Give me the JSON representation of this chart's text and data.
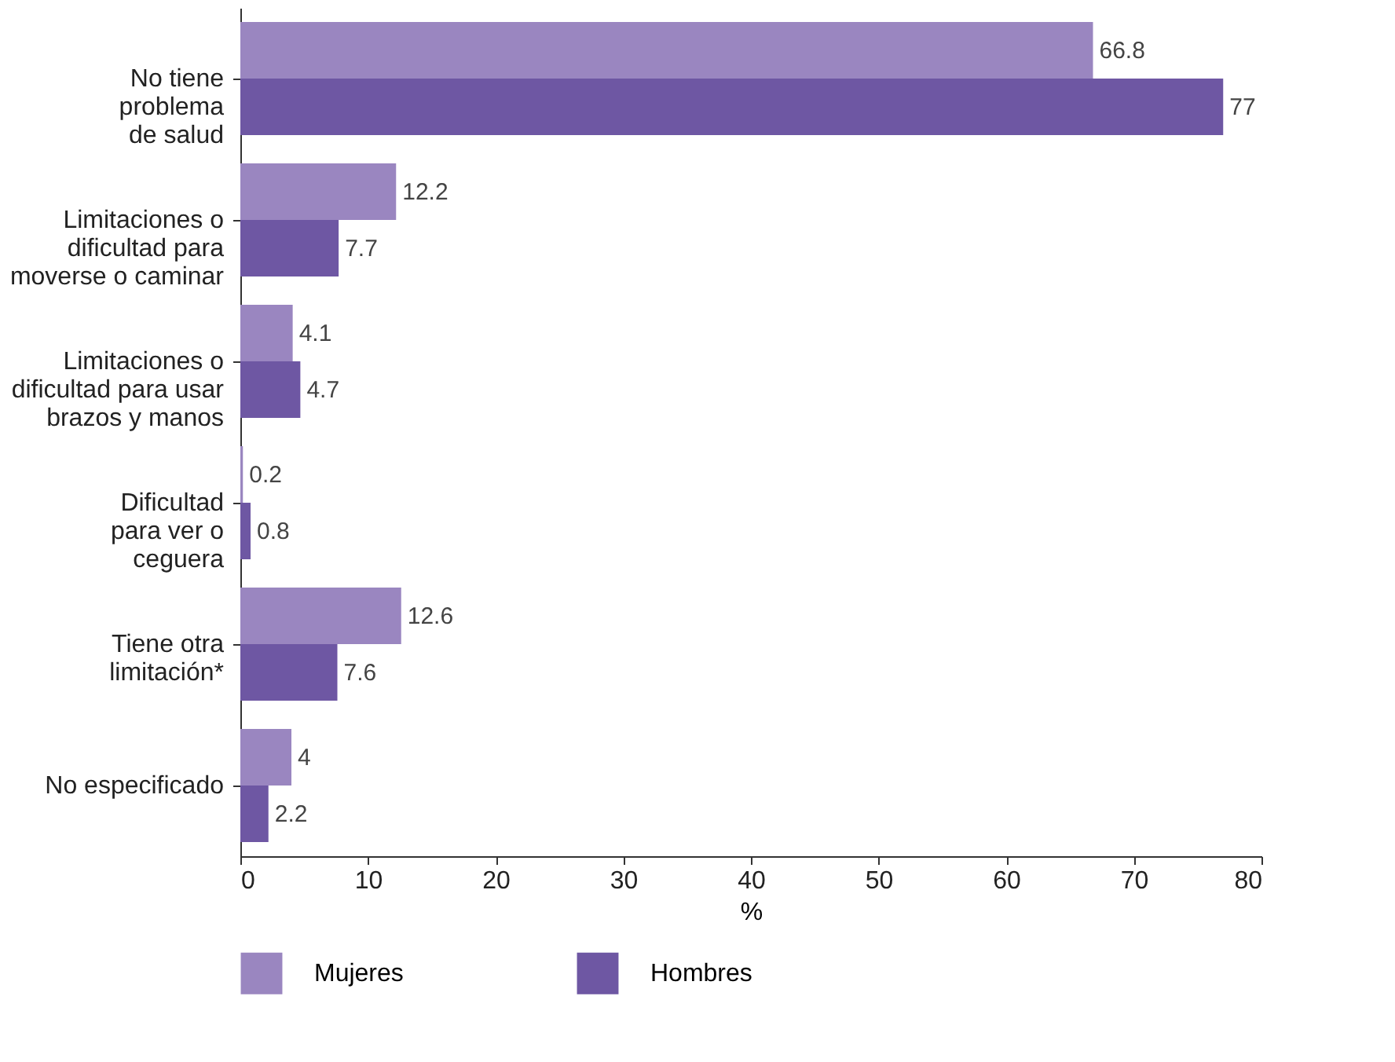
{
  "chart_data": {
    "type": "bar",
    "orientation": "horizontal",
    "categories": [
      "No tiene\nproblema\nde salud",
      "Limitaciones o\ndificultad para\nmoverse o caminar",
      "Limitaciones o\ndificultad para usar\nbrazos y manos",
      "Dificultad\npara ver o\nceguera",
      "Tiene otra\nlimitación*",
      "No especificado"
    ],
    "series": [
      {
        "name": "Mujeres",
        "color": "#9a86c0",
        "values": [
          66.8,
          12.2,
          4.1,
          0.2,
          12.6,
          4
        ]
      },
      {
        "name": "Hombres",
        "color": "#6e57a3",
        "values": [
          77,
          7.7,
          4.7,
          0.8,
          7.6,
          2.2
        ]
      }
    ],
    "xlabel": "%",
    "xlim": [
      0,
      80
    ],
    "xticks": [
      0,
      10,
      20,
      30,
      40,
      50,
      60,
      70,
      80
    ],
    "data_labels": true,
    "grid": false,
    "legend": "bottom"
  }
}
